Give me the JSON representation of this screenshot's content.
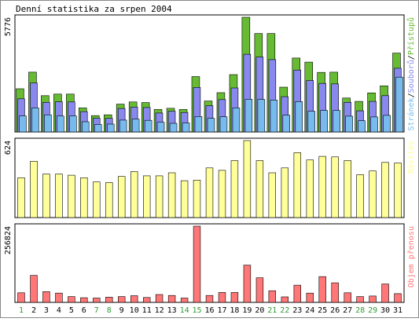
{
  "chart_data": [
    {
      "type": "bar",
      "title": "Denní statistika za srpen 2004",
      "ymax_label": "5776",
      "ylim": [
        0,
        5776
      ],
      "grid": false,
      "legend": "right, vertical",
      "legend_parts": [
        "Stránek",
        "/",
        "Souborů",
        "/",
        "Přístupů"
      ],
      "categories": [
        "1",
        "2",
        "3",
        "4",
        "5",
        "6",
        "7",
        "8",
        "9",
        "10",
        "11",
        "12",
        "13",
        "14",
        "15",
        "16",
        "17",
        "18",
        "19",
        "20",
        "21",
        "22",
        "23",
        "24",
        "25",
        "26",
        "27",
        "28",
        "29",
        "30",
        "31"
      ],
      "series": [
        {
          "name": "Přístupů",
          "color": "#66bb33",
          "values": [
            2150,
            2990,
            1800,
            1880,
            1880,
            1180,
            790,
            830,
            1370,
            1480,
            1450,
            1100,
            1160,
            1100,
            2770,
            1530,
            1950,
            2870,
            5776,
            4950,
            4950,
            2230,
            3710,
            3500,
            2980,
            2990,
            1680,
            1510,
            1940,
            2300,
            3960
          ]
        },
        {
          "name": "Souborů",
          "color": "#8888ee",
          "values": [
            1640,
            2440,
            1460,
            1490,
            1480,
            990,
            660,
            650,
            1150,
            1220,
            1200,
            920,
            1010,
            950,
            2220,
            1290,
            1600,
            2190,
            3900,
            3760,
            3630,
            1750,
            3100,
            2570,
            2420,
            2400,
            1460,
            1030,
            1510,
            1800,
            3190
          ]
        },
        {
          "name": "Stránek",
          "color": "#77bbee",
          "values": [
            770,
            1180,
            830,
            770,
            770,
            480,
            340,
            360,
            560,
            610,
            550,
            450,
            400,
            420,
            740,
            650,
            730,
            1180,
            1620,
            1610,
            1580,
            810,
            1500,
            1010,
            1050,
            1050,
            760,
            530,
            720,
            800,
            2740
          ]
        }
      ]
    },
    {
      "type": "bar",
      "ymax_label": "624",
      "ylim": [
        0,
        624
      ],
      "legend_parts": [
        "Návštěv"
      ],
      "series": [
        {
          "name": "Návštěv",
          "color": "#ffff99",
          "values": [
            320,
            455,
            350,
            350,
            340,
            320,
            285,
            280,
            330,
            370,
            335,
            335,
            360,
            295,
            300,
            400,
            380,
            460,
            624,
            460,
            360,
            400,
            525,
            465,
            495,
            490,
            460,
            345,
            375,
            445,
            440
          ]
        }
      ]
    },
    {
      "type": "bar",
      "ymax_label": "256824",
      "ylim": [
        0,
        256824
      ],
      "legend_parts": [
        "Objem přenosu"
      ],
      "series": [
        {
          "name": "Objem přenosu",
          "color": "#ff7777",
          "values": [
            30000,
            89000,
            34000,
            29000,
            17000,
            13000,
            12000,
            15000,
            17000,
            20000,
            14000,
            24000,
            21000,
            12000,
            256824,
            21000,
            31000,
            31000,
            124000,
            81000,
            37000,
            16000,
            56000,
            29000,
            85000,
            64000,
            30000,
            17000,
            19000,
            60000,
            27000
          ]
        }
      ]
    }
  ],
  "x_label_colors": [
    "#339933",
    "#000000",
    "#000000",
    "#000000",
    "#000000",
    "#000000",
    "#339933",
    "#339933",
    "#000000",
    "#000000",
    "#000000",
    "#000000",
    "#000000",
    "#339933",
    "#339933",
    "#000000",
    "#000000",
    "#000000",
    "#000000",
    "#000000",
    "#339933",
    "#339933",
    "#000000",
    "#000000",
    "#000000",
    "#000000",
    "#000000",
    "#339933",
    "#339933",
    "#000000",
    "#000000"
  ],
  "colors": {
    "frame": "#000000",
    "background": "#ffffff",
    "legend_separator": "#000000"
  }
}
